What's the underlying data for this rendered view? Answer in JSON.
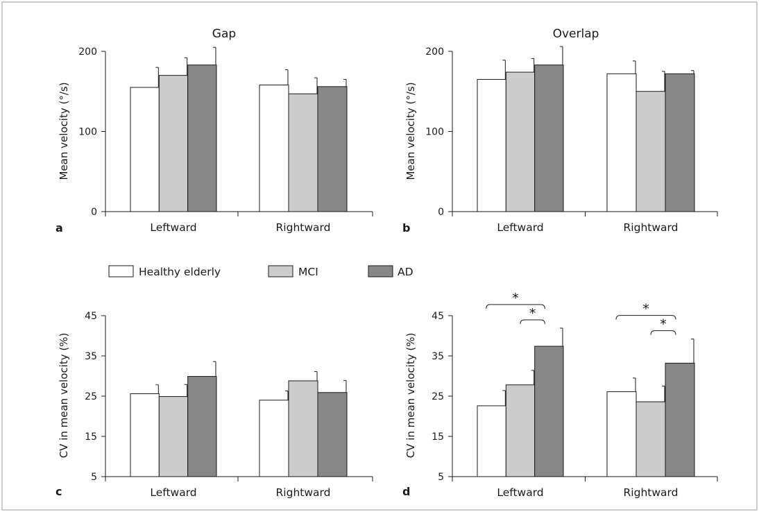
{
  "colors": {
    "Healthy elderly": "#ffffff",
    "MCI": "#cccccc",
    "AD": "#878787",
    "axis": "#1a1a1a",
    "border": "#9a9a9a"
  },
  "legend": [
    "Healthy elderly",
    "MCI",
    "AD"
  ],
  "chart_data": [
    {
      "panel": "a",
      "type": "bar",
      "title": "Gap",
      "ylabel": "Mean velocity (°/s)",
      "ylim": [
        0,
        200
      ],
      "yticks": [
        0,
        100,
        200
      ],
      "categories": [
        "Leftward",
        "Rightward"
      ],
      "series": [
        {
          "name": "Healthy elderly",
          "values": [
            155,
            158
          ],
          "errors": [
            25,
            19
          ]
        },
        {
          "name": "MCI",
          "values": [
            170,
            147
          ],
          "errors": [
            22,
            20
          ]
        },
        {
          "name": "AD",
          "values": [
            183,
            156
          ],
          "errors": [
            22,
            9
          ]
        }
      ],
      "significance": []
    },
    {
      "panel": "b",
      "type": "bar",
      "title": "Overlap",
      "ylabel": "Mean velocity (°/s)",
      "ylim": [
        0,
        200
      ],
      "yticks": [
        0,
        100,
        200
      ],
      "categories": [
        "Leftward",
        "Rightward"
      ],
      "series": [
        {
          "name": "Healthy elderly",
          "values": [
            165,
            172
          ],
          "errors": [
            24,
            16
          ]
        },
        {
          "name": "MCI",
          "values": [
            174,
            150
          ],
          "errors": [
            17,
            25
          ]
        },
        {
          "name": "AD",
          "values": [
            183,
            172
          ],
          "errors": [
            23,
            4
          ]
        }
      ],
      "significance": []
    },
    {
      "panel": "c",
      "type": "bar",
      "title": "",
      "ylabel": "CV in mean velocity (%)",
      "ylim": [
        5,
        45
      ],
      "yticks": [
        5,
        15,
        25,
        35,
        45
      ],
      "categories": [
        "Leftward",
        "Rightward"
      ],
      "series": [
        {
          "name": "Healthy elderly",
          "values": [
            25.6,
            24.0
          ],
          "errors": [
            2.2,
            2.3
          ]
        },
        {
          "name": "MCI",
          "values": [
            24.9,
            28.8
          ],
          "errors": [
            3.0,
            2.3
          ]
        },
        {
          "name": "AD",
          "values": [
            29.9,
            25.9
          ],
          "errors": [
            3.7,
            3.0
          ]
        }
      ],
      "significance": []
    },
    {
      "panel": "d",
      "type": "bar",
      "title": "",
      "ylabel": "CV in mean velocity (%)",
      "ylim": [
        5,
        45
      ],
      "yticks": [
        5,
        15,
        25,
        35,
        45
      ],
      "categories": [
        "Leftward",
        "Rightward"
      ],
      "series": [
        {
          "name": "Healthy elderly",
          "values": [
            22.6,
            26.1
          ],
          "errors": [
            3.8,
            3.4
          ]
        },
        {
          "name": "MCI",
          "values": [
            27.8,
            23.6
          ],
          "errors": [
            3.6,
            3.9
          ]
        },
        {
          "name": "AD",
          "values": [
            37.4,
            33.2
          ],
          "errors": [
            4.5,
            6.0
          ]
        }
      ],
      "significance": [
        {
          "category": 0,
          "from": 0,
          "to": 2,
          "label": "*"
        },
        {
          "category": 0,
          "from": 1,
          "to": 2,
          "label": "*"
        },
        {
          "category": 1,
          "from": 0,
          "to": 2,
          "label": "*"
        },
        {
          "category": 1,
          "from": 1,
          "to": 2,
          "label": "*"
        }
      ]
    }
  ]
}
